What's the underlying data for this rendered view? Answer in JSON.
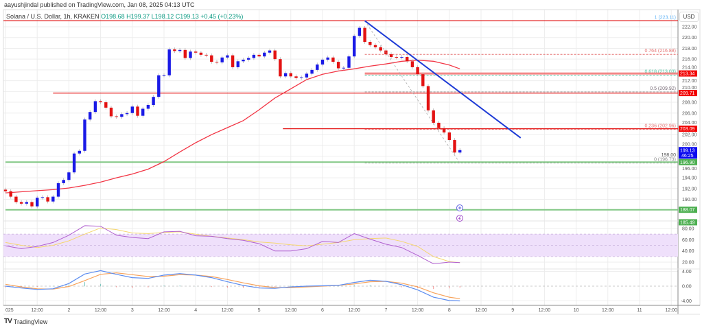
{
  "header": {
    "publisher": "aayushjindal published on TradingView.com, Jan 08, 2025 04:13 UTC",
    "symbol": "Solana / U.S. Dollar, 1h, KRAKEN",
    "open": "O198.68",
    "high": "H199.37",
    "low": "L198.12",
    "close": "C199.13",
    "change": "+0.45 (+0.23%)"
  },
  "currency_button": "USD",
  "footer": {
    "logo_text": "TradingView",
    "logo_mark": "TV"
  },
  "colors": {
    "up": "#1a1ae6",
    "down": "#e31212",
    "ma": "#f23645",
    "trendline": "#1e3bd6",
    "support": "#81c784",
    "resistance": "#e31212",
    "rsi": "#b05fcf",
    "rsi_ma": "#f5d76e",
    "rsi_band": "#efe0fb",
    "macd": "#5b8cf0",
    "signal": "#f7a35c",
    "hist_up": "#26a69a",
    "hist_down": "#ef5350"
  },
  "icons": [
    "plus-circle-icon",
    "lightning-icon",
    "tradingview-logo-icon"
  ],
  "chart_data": {
    "type": "candlestick",
    "time_axis_labels": [
      "2025",
      "12:00",
      "2",
      "12:00",
      "3",
      "12:00",
      "4",
      "12:00",
      "5",
      "12:00",
      "6",
      "12:00",
      "7",
      "12:00",
      "8",
      "12:00",
      "9",
      "12:00",
      "10",
      "12:00",
      "11",
      "12:00"
    ],
    "price_axis": {
      "ylim": [
        185,
        224
      ],
      "ticks": [
        "222.00",
        "220.00",
        "218.00",
        "216.00",
        "214.00",
        "212.00",
        "210.00",
        "208.00",
        "206.00",
        "204.00",
        "202.00",
        "200.00",
        "198.00",
        "196.00",
        "194.00",
        "192.00",
        "190.00"
      ]
    },
    "candles_close": [
      [
        "01-01 00:00",
        191.5
      ],
      [
        "01-01 02:00",
        190.5
      ],
      [
        "01-01 04:00",
        189.5
      ],
      [
        "01-01 06:00",
        189.2
      ],
      [
        "01-01 08:00",
        189.5
      ],
      [
        "01-01 10:00",
        188.7
      ],
      [
        "01-01 12:00",
        190.3
      ],
      [
        "01-01 14:00",
        190.4
      ],
      [
        "01-01 16:00",
        189.6
      ],
      [
        "01-01 18:00",
        190.5
      ],
      [
        "01-01 20:00",
        193
      ],
      [
        "01-01 22:00",
        193.6
      ],
      [
        "01-02 00:00",
        195
      ],
      [
        "01-02 02:00",
        198.5
      ],
      [
        "01-02 04:00",
        199
      ],
      [
        "01-02 06:00",
        204.8
      ],
      [
        "01-02 08:00",
        206.2
      ],
      [
        "01-02 10:00",
        208.2
      ],
      [
        "01-02 12:00",
        208
      ],
      [
        "01-02 14:00",
        207
      ],
      [
        "01-02 16:00",
        205.4
      ],
      [
        "01-02 18:00",
        205.3
      ],
      [
        "01-02 20:00",
        205.8
      ],
      [
        "01-02 22:00",
        206
      ],
      [
        "01-03 00:00",
        207.2
      ],
      [
        "01-03 02:00",
        205.5
      ],
      [
        "01-03 04:00",
        206.8
      ],
      [
        "01-03 06:00",
        207.5
      ],
      [
        "01-03 08:00",
        209
      ],
      [
        "01-03 10:00",
        213
      ],
      [
        "01-03 12:00",
        213
      ],
      [
        "01-03 14:00",
        217.8
      ],
      [
        "01-03 16:00",
        217.5
      ],
      [
        "01-03 18:00",
        217.7
      ],
      [
        "01-03 20:00",
        216.2
      ],
      [
        "01-03 22:00",
        217.4
      ],
      [
        "01-04 00:00",
        217.2
      ],
      [
        "01-04 02:00",
        216.8
      ],
      [
        "01-04 04:00",
        216.7
      ],
      [
        "01-04 06:00",
        215.5
      ],
      [
        "01-04 08:00",
        215.4
      ],
      [
        "01-04 10:00",
        216.3
      ],
      [
        "01-04 12:00",
        216.7
      ],
      [
        "01-04 14:00",
        214.5
      ],
      [
        "01-04 16:00",
        215.6
      ],
      [
        "01-04 18:00",
        215.9
      ],
      [
        "01-04 20:00",
        216.2
      ],
      [
        "01-04 22:00",
        216.8
      ],
      [
        "01-05 00:00",
        216.5
      ],
      [
        "01-05 02:00",
        217.2
      ],
      [
        "01-05 04:00",
        217.6
      ],
      [
        "01-05 06:00",
        216
      ],
      [
        "01-05 08:00",
        212.8
      ],
      [
        "01-05 10:00",
        213.4
      ],
      [
        "01-05 12:00",
        212.8
      ],
      [
        "01-05 14:00",
        212.5
      ],
      [
        "01-05 16:00",
        212.6
      ],
      [
        "01-05 18:00",
        213.3
      ],
      [
        "01-05 20:00",
        214
      ],
      [
        "01-05 22:00",
        215
      ],
      [
        "01-06 00:00",
        215.9
      ],
      [
        "01-06 02:00",
        216.3
      ],
      [
        "01-06 04:00",
        215.5
      ],
      [
        "01-06 06:00",
        214.3
      ],
      [
        "01-06 08:00",
        214.4
      ],
      [
        "01-06 10:00",
        216.5
      ],
      [
        "01-06 12:00",
        220.3
      ],
      [
        "01-06 14:00",
        221.8
      ],
      [
        "01-06 16:00",
        219.2
      ],
      [
        "01-06 18:00",
        218.6
      ],
      [
        "01-06 20:00",
        218.2
      ],
      [
        "01-06 22:00",
        217.6
      ],
      [
        "01-07 00:00",
        216.9
      ],
      [
        "01-07 02:00",
        216.4
      ],
      [
        "01-07 04:00",
        216.3
      ],
      [
        "01-07 06:00",
        216.4
      ],
      [
        "01-07 08:00",
        215.6
      ],
      [
        "01-07 10:00",
        214.5
      ],
      [
        "01-07 12:00",
        213.2
      ],
      [
        "01-07 14:00",
        211
      ],
      [
        "01-07 16:00",
        206.5
      ],
      [
        "01-07 18:00",
        204.2
      ],
      [
        "01-07 20:00",
        203.2
      ],
      [
        "01-07 22:00",
        202.4
      ],
      [
        "01-08 00:00",
        201
      ],
      [
        "01-08 02:00",
        198.68
      ],
      [
        "01-08 04:00",
        199.13
      ]
    ],
    "indicator_times": [
      "01-01 00:00",
      "01-01 06:00",
      "01-01 12:00",
      "01-01 18:00",
      "01-02 00:00",
      "01-02 06:00",
      "01-02 12:00",
      "01-02 18:00",
      "01-03 00:00",
      "01-03 06:00",
      "01-03 12:00",
      "01-03 18:00",
      "01-04 00:00",
      "01-04 06:00",
      "01-04 12:00",
      "01-04 18:00",
      "01-05 00:00",
      "01-05 06:00",
      "01-05 12:00",
      "01-05 18:00",
      "01-06 00:00",
      "01-06 06:00",
      "01-06 12:00",
      "01-06 18:00",
      "01-07 00:00",
      "01-07 06:00",
      "01-07 12:00",
      "01-07 18:00",
      "01-08 00:00",
      "01-08 04:00"
    ],
    "moving_average": [
      191.2,
      191.4,
      191.6,
      191.8,
      192.1,
      192.6,
      193.2,
      194,
      194.7,
      195.6,
      197,
      198.8,
      200.5,
      202,
      203.3,
      204.6,
      206.6,
      208.8,
      210.5,
      212.2,
      213.2,
      213.8,
      214.2,
      214.7,
      215.1,
      215.6,
      215.8,
      215.6,
      214.9,
      214.2
    ],
    "rsi": {
      "ylim": [
        10,
        90
      ],
      "ticks": [
        "80.00",
        "60.00",
        "40.00",
        "20.00"
      ],
      "band": [
        30,
        70
      ],
      "values": [
        49,
        44,
        48,
        55,
        68,
        85,
        84,
        68,
        64,
        62,
        74,
        75,
        67,
        66,
        62,
        59,
        53,
        40,
        40,
        44,
        57,
        55,
        71,
        61,
        52,
        46,
        32,
        17,
        20,
        19
      ],
      "ma": [
        55,
        50,
        46,
        50,
        58,
        70,
        81,
        78,
        72,
        71,
        73,
        74,
        70,
        66,
        63,
        60,
        56,
        54,
        51,
        49,
        52,
        55,
        60,
        62,
        63,
        57,
        48,
        30,
        21,
        19
      ]
    },
    "macd": {
      "ylim": [
        -4.5,
        4.5
      ],
      "ticks": [
        "4.00",
        "0.00",
        "-4.00"
      ],
      "macd": [
        0,
        -0.5,
        -0.9,
        -0.7,
        0.7,
        3.3,
        4.2,
        3.2,
        2.3,
        2.1,
        3.0,
        3.4,
        3.0,
        2.3,
        1.2,
        0.2,
        -0.5,
        -0.6,
        -0.2,
        0,
        0.1,
        0.2,
        1.0,
        1.6,
        1.3,
        0.4,
        -1.0,
        -3.0,
        -3.9,
        -4.0
      ],
      "signal": [
        0.5,
        -0.2,
        -0.7,
        -0.8,
        -0.1,
        1.5,
        3.2,
        3.6,
        3.1,
        2.6,
        2.7,
        3.1,
        3.0,
        2.6,
        1.8,
        0.9,
        0.1,
        -0.4,
        -0.4,
        -0.2,
        0,
        0.2,
        0.6,
        1.2,
        1.3,
        0.8,
        -0.2,
        -1.8,
        -3.0,
        -3.4
      ]
    },
    "fibonacci": {
      "from": "01-06 16:00",
      "anchor_high": 223.11,
      "anchor_low": 196.73,
      "levels": [
        {
          "label": "1 (223.11)",
          "price": 223.11,
          "color": "#64b5f6",
          "line": "#e31212",
          "solid": true
        },
        {
          "label": "0.764 (216.88)",
          "price": 216.88,
          "color": "#e57373",
          "line": "#e57373"
        },
        {
          "label": "0.618 (213.03)",
          "price": 213.03,
          "color": "#4cc3a0",
          "line": "#4cc3a0"
        },
        {
          "label": "0.5 (209.92)",
          "price": 209.92,
          "color": "#7b6f7a",
          "line": "#999999"
        },
        {
          "label": "0.236 (202.96)",
          "price": 202.96,
          "color": "#e57373",
          "line": "#e57373"
        },
        {
          "label": "0 (196.73)",
          "price": 196.73,
          "color": "#888888",
          "line": "#aaaaaa"
        }
      ]
    },
    "horizontal_lines": [
      {
        "price": 213.34,
        "from": "01-06 16:00",
        "color": "#f26b6b",
        "width": 3
      },
      {
        "price": 209.71,
        "from": "01-01 18:00",
        "color": "#e31212",
        "width": 1.3
      },
      {
        "price": 203.09,
        "from": "01-05 09:00",
        "color": "#e31212",
        "width": 1.3
      },
      {
        "price": 196.9,
        "from": "01-01 00:00",
        "color": "#81c784",
        "width": 2
      },
      {
        "price": 188.07,
        "from": "01-01 00:00",
        "color": "#81c784",
        "width": 2
      }
    ],
    "trendline": {
      "from": [
        "01-06 16:00",
        223.11
      ],
      "to": [
        "01-09 03:00",
        201.4
      ]
    },
    "fib_diagonal": {
      "from": [
        "01-06 16:00",
        223.11
      ],
      "to": [
        "01-08 04:00",
        196.73
      ]
    },
    "price_tags": [
      {
        "text": "213.34",
        "price": 213.34,
        "bg": "#f20000"
      },
      {
        "text": "209.71",
        "price": 209.71,
        "bg": "#f20000"
      },
      {
        "text": "203.09",
        "price": 203.09,
        "bg": "#f20000"
      },
      {
        "text": "199.13",
        "sub": "46:25",
        "price": 199.13,
        "bg": "#0a0af0"
      },
      {
        "text": "196.90",
        "price": 196.9,
        "bg": "#4caf50"
      },
      {
        "text": "188.07",
        "price": 188.07,
        "bg": "#4caf50"
      },
      {
        "text": "185.49",
        "price": 185.75,
        "bg": "#4caf50"
      }
    ]
  }
}
